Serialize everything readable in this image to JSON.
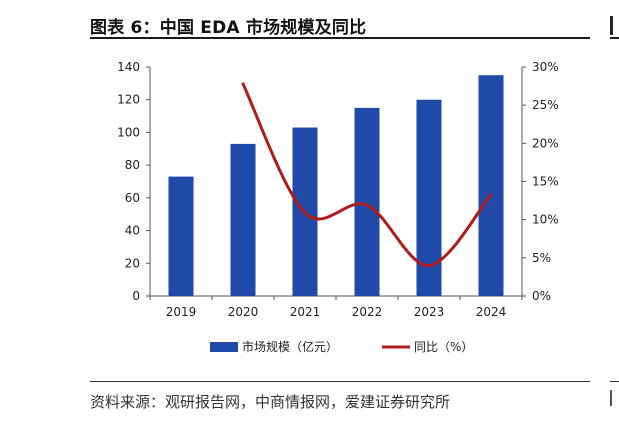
{
  "figure": {
    "title": "图表 6：中国 EDA 市场规模及同比",
    "source": "资料来源：观研报告网，中商情报网，爱建证券研究所"
  },
  "colors": {
    "bar": "#1f4aa8",
    "line": "#b01c1c",
    "axis": "#555555"
  },
  "chart_data": {
    "type": "bar",
    "categories": [
      "2019",
      "2020",
      "2021",
      "2022",
      "2023",
      "2024"
    ],
    "series": [
      {
        "name": "市场规模（亿元）",
        "type": "bar",
        "axis": "left",
        "values": [
          73,
          93,
          103,
          115,
          120,
          135
        ]
      },
      {
        "name": "同比（%）",
        "type": "line",
        "axis": "right",
        "values": [
          null,
          27.8,
          10.9,
          11.9,
          4.0,
          13.3
        ]
      }
    ],
    "y_left": {
      "min": 0,
      "max": 140,
      "step": 20,
      "ticks": [
        "0",
        "20",
        "40",
        "60",
        "80",
        "100",
        "120",
        "140"
      ]
    },
    "y_right": {
      "min": 0,
      "max": 30,
      "step": 5,
      "ticks": [
        "0%",
        "5%",
        "10%",
        "15%",
        "20%",
        "25%",
        "30%"
      ]
    },
    "grid": false,
    "legend": "bottom-center"
  }
}
